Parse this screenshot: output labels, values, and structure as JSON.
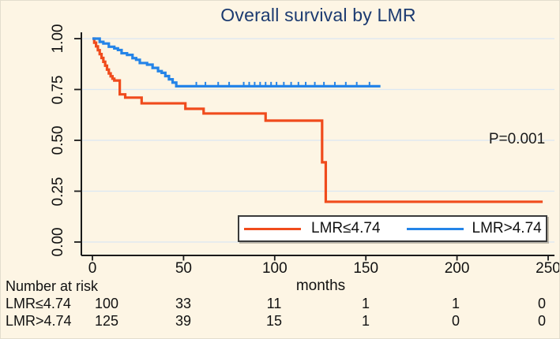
{
  "figure": {
    "title": "Overall survival by LMR",
    "p_value_label": "P=0.001"
  },
  "chart_data": {
    "type": "line",
    "subtype": "kaplan-meier-step",
    "title": "Overall survival by LMR",
    "xlabel": "months",
    "ylabel": "",
    "xlim": [
      0,
      250
    ],
    "ylim": [
      0,
      1
    ],
    "x_ticks": [
      0,
      50,
      100,
      150,
      200,
      250
    ],
    "y_ticks": [
      {
        "label": "1.00",
        "value": 1.0
      },
      {
        "label": "0.75",
        "value": 0.75
      },
      {
        "label": "0.50",
        "value": 0.5
      },
      {
        "label": "0.25",
        "value": 0.25
      },
      {
        "label": "0.00",
        "value": 0.0
      }
    ],
    "grid": true,
    "legend_position": "bottom-center-box",
    "annotation": {
      "text": "P=0.001",
      "x_month": 234,
      "y_survival": 0.5
    },
    "series": [
      {
        "name": "LMR≤4.74",
        "color": "#F04B1C",
        "steps": [
          [
            0,
            1.0
          ],
          [
            1,
            0.98
          ],
          [
            2,
            0.962
          ],
          [
            3,
            0.943
          ],
          [
            4,
            0.924
          ],
          [
            5,
            0.905
          ],
          [
            6,
            0.886
          ],
          [
            7,
            0.867
          ],
          [
            8,
            0.848
          ],
          [
            9,
            0.829
          ],
          [
            10,
            0.815
          ],
          [
            11,
            0.803
          ],
          [
            12,
            0.794
          ],
          [
            15,
            0.726
          ],
          [
            18,
            0.71
          ],
          [
            27,
            0.682
          ],
          [
            51,
            0.655
          ],
          [
            61,
            0.632
          ],
          [
            95,
            0.597
          ],
          [
            126,
            0.392
          ],
          [
            128,
            0.198
          ],
          [
            247,
            0.198
          ]
        ],
        "censor_months": []
      },
      {
        "name": "LMR>4.74",
        "color": "#2484E8",
        "steps": [
          [
            0,
            1.0
          ],
          [
            4,
            0.984
          ],
          [
            6,
            0.976
          ],
          [
            9,
            0.96
          ],
          [
            12,
            0.952
          ],
          [
            14,
            0.944
          ],
          [
            16,
            0.928
          ],
          [
            19,
            0.92
          ],
          [
            22,
            0.904
          ],
          [
            24,
            0.896
          ],
          [
            26,
            0.88
          ],
          [
            30,
            0.872
          ],
          [
            33,
            0.856
          ],
          [
            36,
            0.84
          ],
          [
            38,
            0.832
          ],
          [
            40,
            0.816
          ],
          [
            42,
            0.8
          ],
          [
            44,
            0.784
          ],
          [
            46,
            0.766
          ],
          [
            158,
            0.766
          ]
        ],
        "censor_months": [
          57,
          62,
          69,
          75,
          83,
          86,
          89,
          92,
          95,
          98,
          101,
          105,
          109,
          113,
          117,
          122,
          127,
          133,
          139,
          145,
          152
        ]
      }
    ],
    "risk_table": {
      "title": "Number at risk",
      "time_points": [
        0,
        50,
        100,
        150,
        200,
        250
      ],
      "rows": [
        {
          "label": "LMR≤4.74",
          "values": [
            "100",
            "33",
            "11",
            "1",
            "1",
            "0"
          ]
        },
        {
          "label": "LMR>4.74",
          "values": [
            "125",
            "39",
            "15",
            "1",
            "0",
            "0"
          ]
        }
      ]
    },
    "colors": {
      "background": "#FDF5E4",
      "title": "#1B3A70",
      "grid": "#DCE8F2",
      "axis": "#1A1A1A",
      "series_red": "#F04B1C",
      "series_blue": "#2484E8",
      "legend_border": "#3A3A3A",
      "legend_background": "#FFFFFF"
    }
  }
}
